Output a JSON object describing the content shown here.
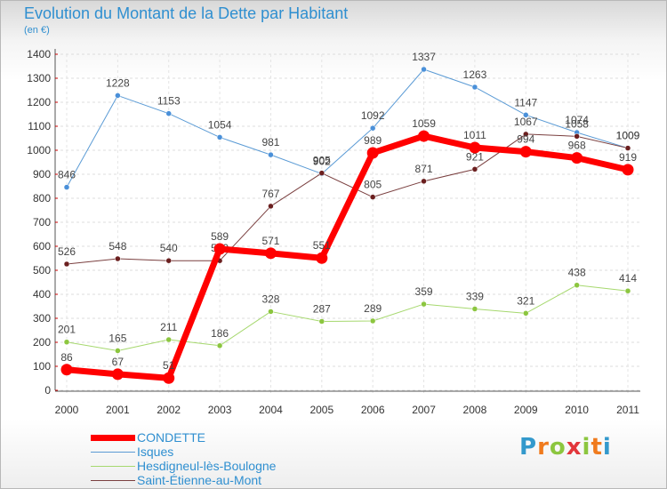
{
  "title": "Evolution du Montant de la Dette par Habitant",
  "subtitle": "(en €)",
  "brand": {
    "text": "Proxiti",
    "colors": [
      "#3399cc",
      "#f07b1e",
      "#8cc63f",
      "#e2363b",
      "#8cc63f",
      "#f07b1e",
      "#3399cc"
    ]
  },
  "chart_data": {
    "type": "line",
    "title": "Evolution du Montant de la Dette par Habitant",
    "subtitle": "(en €)",
    "xlabel": "",
    "ylabel": "",
    "ylim": [
      0,
      1400
    ],
    "yticks": [
      0,
      100,
      200,
      300,
      400,
      500,
      600,
      700,
      800,
      900,
      1000,
      1100,
      1200,
      1300,
      1400
    ],
    "categories": [
      "2000",
      "2001",
      "2002",
      "2003",
      "2004",
      "2005",
      "2006",
      "2007",
      "2008",
      "2009",
      "2010",
      "2011"
    ],
    "grid": true,
    "legend_position": "bottom-left",
    "series": [
      {
        "name": "Isques",
        "color": "#5b9bd5",
        "marker": "#4a90d9",
        "width": 1,
        "values": [
          846,
          1228,
          1153,
          1054,
          981,
          902,
          1092,
          1337,
          1263,
          1147,
          1074,
          1009
        ]
      },
      {
        "name": "Hesdigneul-lès-Boulogne",
        "color": "#a6d86e",
        "marker": "#8cc63f",
        "width": 1,
        "values": [
          201,
          165,
          211,
          186,
          328,
          287,
          289,
          359,
          339,
          321,
          438,
          414
        ]
      },
      {
        "name": "Saint-Étienne-au-Mont",
        "color": "#7a3f3f",
        "marker": "#6b1f1f",
        "width": 1,
        "values": [
          526,
          548,
          540,
          540,
          767,
          905,
          805,
          871,
          921,
          1067,
          1058,
          1009
        ]
      },
      {
        "name": "CONDETTE",
        "color": "#ff0000",
        "marker": "#ff0000",
        "width": 7,
        "values": [
          86,
          67,
          51,
          589,
          571,
          551,
          989,
          1059,
          1011,
          994,
          968,
          919
        ]
      }
    ],
    "legend": [
      "CONDETTE",
      "Isques",
      "Hesdigneul-lès-Boulogne",
      "Saint-Étienne-au-Mont"
    ]
  }
}
